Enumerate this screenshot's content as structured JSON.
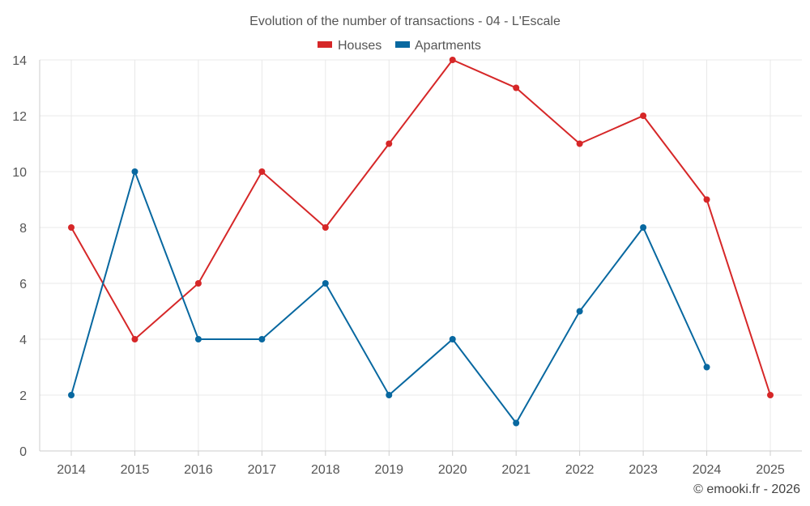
{
  "chart_data": {
    "type": "line",
    "title": "Evolution of the number of transactions - 04 - L'Escale",
    "x": [
      "2014",
      "2015",
      "2016",
      "2017",
      "2018",
      "2019",
      "2020",
      "2021",
      "2022",
      "2023",
      "2024",
      "2025"
    ],
    "series": [
      {
        "name": "Houses",
        "color": "#d62728",
        "values": [
          8,
          4,
          6,
          10,
          8,
          11,
          14,
          13,
          11,
          12,
          9,
          2
        ]
      },
      {
        "name": "Apartments",
        "color": "#0868a0",
        "values": [
          2,
          10,
          4,
          4,
          6,
          2,
          4,
          1,
          5,
          8,
          3,
          null
        ]
      }
    ],
    "ylim": [
      0,
      14
    ],
    "yticks": [
      0,
      2,
      4,
      6,
      8,
      10,
      12,
      14
    ],
    "grid": true,
    "legend": "top-center"
  },
  "credit": "© emooki.fr - 2026"
}
